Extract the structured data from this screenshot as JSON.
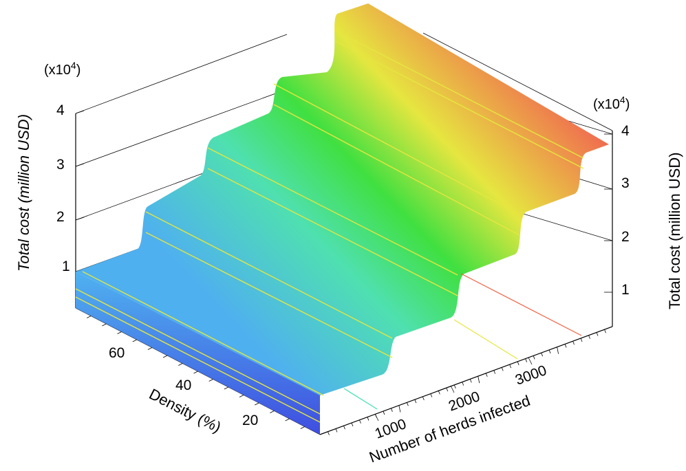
{
  "chart_data": {
    "type": "surface",
    "x_axis": {
      "title": "Number of herds infected",
      "ticks": [
        "1000",
        "2000",
        "3000"
      ],
      "range": [
        0,
        3700
      ]
    },
    "y_axis": {
      "title": "Density (%)",
      "ticks": [
        "20",
        "40",
        "60"
      ],
      "range": [
        0,
        80
      ]
    },
    "z_axis_left": {
      "title": "Total cost (million USD)",
      "ticks": [
        "1",
        "2",
        "3",
        "4"
      ],
      "multiplier": "(x10",
      "multiplier_exp": "4",
      "multiplier_close": ")"
    },
    "z_axis_right": {
      "title": "Total cost (million USD)",
      "ticks": [
        "1",
        "2",
        "3",
        "4"
      ],
      "multiplier": "(x10",
      "multiplier_exp": "4",
      "multiplier_close": ")"
    },
    "steps": [
      {
        "herds_from": 0,
        "herds_to": 1000,
        "cost_x10000": 0.9
      },
      {
        "herds_from": 1000,
        "herds_to": 2000,
        "cost_x10000": 1.9
      },
      {
        "herds_from": 2000,
        "herds_to": 2800,
        "cost_x10000": 2.9
      },
      {
        "herds_from": 2800,
        "herds_to": 3700,
        "cost_x10000": 3.9
      }
    ],
    "colormap": [
      "#3f4fe0",
      "#4fb0ef",
      "#4fe0b0",
      "#40e040",
      "#e6e640",
      "#f0c040",
      "#f06040",
      "#e85050"
    ],
    "grid": true
  }
}
